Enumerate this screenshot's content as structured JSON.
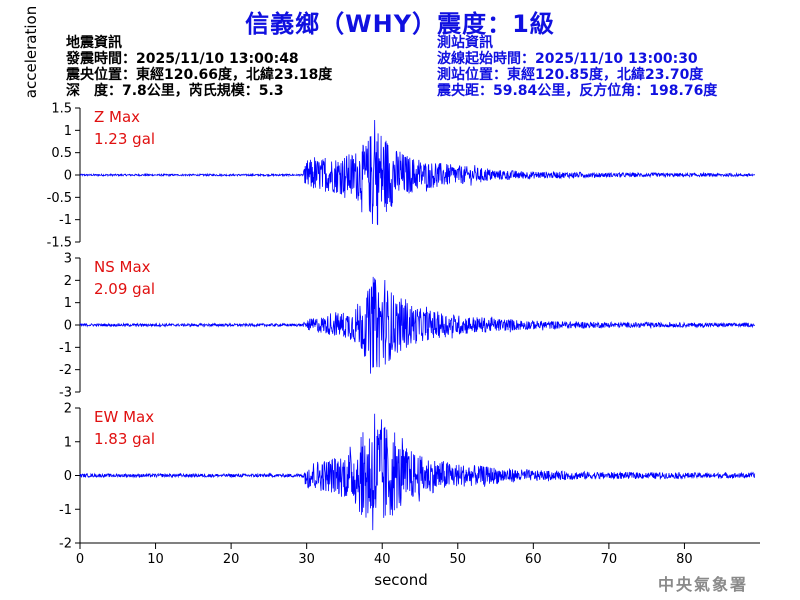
{
  "title": "信義鄉（WHY）震度：1級",
  "event_info": {
    "heading": "地震資訊",
    "origin_time": "發震時間：2025/11/10 13:00:48",
    "epicenter": "震央位置：東經120.66度，北緯23.18度",
    "depth_magnitude": "深　度：7.8公里，芮氏規模：5.3"
  },
  "station_info": {
    "heading": "測站資訊",
    "wave_onset": "波線起始時間：2025/11/10 13:00:30",
    "station_location": "測站位置：東經120.85度，北緯23.70度",
    "distance_azimuth": "震央距：59.84公里，反方位角：198.76度"
  },
  "footer": {
    "agency": "中央氣象署"
  },
  "colors": {
    "title": "#1010e0",
    "trace": "#0000ff",
    "max_label": "#e01010",
    "info_right": "#1010e0"
  },
  "chart_data": [
    {
      "type": "line",
      "component": "Z",
      "max_label": "Z Max",
      "max_value": "1.23 gal",
      "ylim": [
        -1.5,
        1.5
      ],
      "yticks": [
        -1.5,
        -1,
        -0.5,
        0,
        0.5,
        1,
        1.5
      ],
      "ytick_labels": [
        "-1.5",
        "-1",
        "-0.5",
        "0",
        "0.5",
        "1",
        "1.5"
      ],
      "xlim": [
        0,
        90
      ],
      "xticks": [
        0,
        10,
        20,
        30,
        40,
        50,
        60,
        70,
        80
      ],
      "ylabel": "acceleration",
      "onset_s": 30,
      "peak_time_s": 39,
      "envelope": [
        [
          0,
          0.02
        ],
        [
          29.5,
          0.02
        ],
        [
          30,
          0.35
        ],
        [
          33,
          0.38
        ],
        [
          36,
          0.5
        ],
        [
          38,
          0.75
        ],
        [
          39,
          1.23
        ],
        [
          40,
          1.0
        ],
        [
          42,
          0.55
        ],
        [
          45,
          0.33
        ],
        [
          50,
          0.22
        ],
        [
          55,
          0.12
        ],
        [
          60,
          0.08
        ],
        [
          70,
          0.05
        ],
        [
          90,
          0.03
        ]
      ]
    },
    {
      "type": "line",
      "component": "NS",
      "max_label": "NS Max",
      "max_value": "2.09 gal",
      "ylim": [
        -3,
        3
      ],
      "yticks": [
        -3,
        -2,
        -1,
        0,
        1,
        2,
        3
      ],
      "ytick_labels": [
        "-3",
        "-2",
        "-1",
        "0",
        "1",
        "2",
        "3"
      ],
      "xlim": [
        0,
        90
      ],
      "xticks": [
        0,
        10,
        20,
        30,
        40,
        50,
        60,
        70,
        80
      ],
      "onset_s": 30,
      "peak_time_s": 39,
      "envelope": [
        [
          0,
          0.06
        ],
        [
          29.5,
          0.06
        ],
        [
          30,
          0.25
        ],
        [
          33,
          0.45
        ],
        [
          36,
          0.7
        ],
        [
          38,
          1.5
        ],
        [
          39,
          2.09
        ],
        [
          40,
          1.9
        ],
        [
          42,
          1.3
        ],
        [
          45,
          0.75
        ],
        [
          50,
          0.45
        ],
        [
          55,
          0.3
        ],
        [
          60,
          0.2
        ],
        [
          70,
          0.12
        ],
        [
          90,
          0.08
        ]
      ]
    },
    {
      "type": "line",
      "component": "EW",
      "max_label": "EW Max",
      "max_value": "1.83 gal",
      "ylim": [
        -2,
        2
      ],
      "yticks": [
        -2,
        -1,
        0,
        1,
        2
      ],
      "ytick_labels": [
        "-2",
        "-1",
        "0",
        "1",
        "2"
      ],
      "xlim": [
        0,
        90
      ],
      "xticks": [
        0,
        10,
        20,
        30,
        40,
        50,
        60,
        70,
        80
      ],
      "xlabel": "second",
      "onset_s": 30,
      "peak_time_s": 39,
      "envelope": [
        [
          0,
          0.05
        ],
        [
          29.5,
          0.05
        ],
        [
          30,
          0.4
        ],
        [
          33,
          0.5
        ],
        [
          36,
          0.75
        ],
        [
          38,
          1.5
        ],
        [
          39,
          1.83
        ],
        [
          40,
          1.7
        ],
        [
          42,
          1.0
        ],
        [
          45,
          0.6
        ],
        [
          50,
          0.35
        ],
        [
          55,
          0.25
        ],
        [
          60,
          0.15
        ],
        [
          70,
          0.1
        ],
        [
          90,
          0.07
        ]
      ]
    }
  ]
}
